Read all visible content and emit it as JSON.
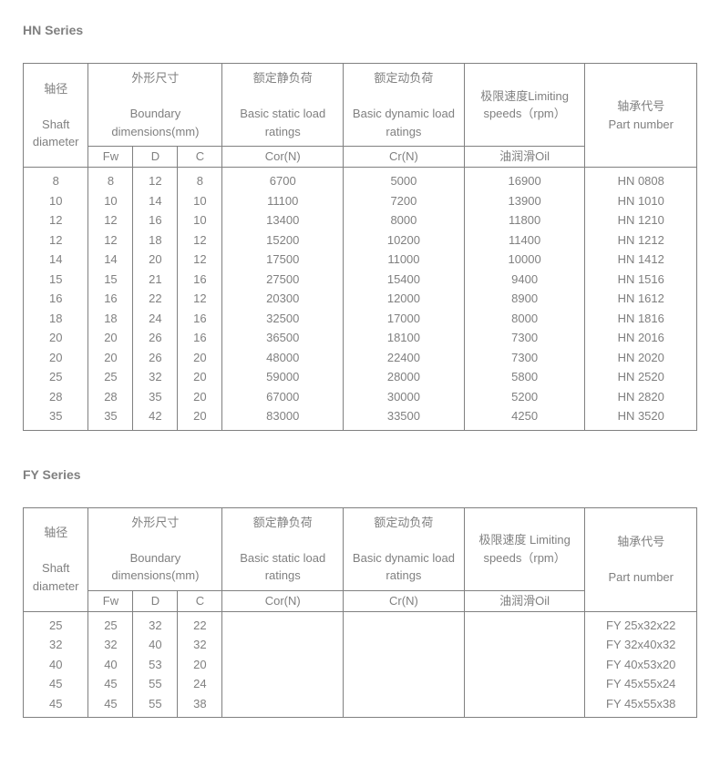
{
  "hn": {
    "title": "HN Series",
    "headers": {
      "shaft_cn": "轴径",
      "shaft_en": "Shaft diameter",
      "dim_cn": "外形尺寸",
      "dim_en": "Boundary dimensions(mm)",
      "fw": "Fw",
      "d": "D",
      "c": "C",
      "static_cn": "额定静负荷",
      "static_en": "Basic static load ratings",
      "static_unit": "Cor(N)",
      "dyn_cn": "额定动负荷",
      "dyn_en": "Basic dynamic load ratings",
      "dyn_unit": "Cr(N)",
      "speed_cn": "极限速度Limiting speeds（rpm）",
      "oil": "油润滑Oil",
      "part_cn": "轴承代号",
      "part_en": "Part number"
    },
    "rows": [
      {
        "shaft": "8",
        "fw": "8",
        "d": "12",
        "c": "8",
        "cor": "6700",
        "cr": "5000",
        "oil": "16900",
        "part": "HN 0808"
      },
      {
        "shaft": "10",
        "fw": "10",
        "d": "14",
        "c": "10",
        "cor": "11100",
        "cr": "7200",
        "oil": "13900",
        "part": "HN 1010"
      },
      {
        "shaft": "12",
        "fw": "12",
        "d": "16",
        "c": "10",
        "cor": "13400",
        "cr": "8000",
        "oil": "11800",
        "part": "HN 1210"
      },
      {
        "shaft": "12",
        "fw": "12",
        "d": "18",
        "c": "12",
        "cor": "15200",
        "cr": "10200",
        "oil": "11400",
        "part": "HN 1212"
      },
      {
        "shaft": "14",
        "fw": "14",
        "d": "20",
        "c": "12",
        "cor": "17500",
        "cr": "11000",
        "oil": "10000",
        "part": "HN 1412"
      },
      {
        "shaft": "15",
        "fw": "15",
        "d": "21",
        "c": "16",
        "cor": "27500",
        "cr": "15400",
        "oil": "9400",
        "part": "HN 1516"
      },
      {
        "shaft": "16",
        "fw": "16",
        "d": "22",
        "c": "12",
        "cor": "20300",
        "cr": "12000",
        "oil": "8900",
        "part": "HN 1612"
      },
      {
        "shaft": "18",
        "fw": "18",
        "d": "24",
        "c": "16",
        "cor": "32500",
        "cr": "17000",
        "oil": "8000",
        "part": "HN 1816"
      },
      {
        "shaft": "20",
        "fw": "20",
        "d": "26",
        "c": "16",
        "cor": "36500",
        "cr": "18100",
        "oil": "7300",
        "part": "HN 2016"
      },
      {
        "shaft": "20",
        "fw": "20",
        "d": "26",
        "c": "20",
        "cor": "48000",
        "cr": "22400",
        "oil": "7300",
        "part": "HN 2020"
      },
      {
        "shaft": "25",
        "fw": "25",
        "d": "32",
        "c": "20",
        "cor": "59000",
        "cr": "28000",
        "oil": "5800",
        "part": "HN 2520"
      },
      {
        "shaft": "28",
        "fw": "28",
        "d": "35",
        "c": "20",
        "cor": "67000",
        "cr": "30000",
        "oil": "5200",
        "part": "HN 2820"
      },
      {
        "shaft": "35",
        "fw": "35",
        "d": "42",
        "c": "20",
        "cor": "83000",
        "cr": "33500",
        "oil": "4250",
        "part": "HN 3520"
      }
    ]
  },
  "fy": {
    "title": "FY Series",
    "headers": {
      "shaft_cn": "轴径",
      "shaft_en": "Shaft diameter",
      "dim_cn": "外形尺寸",
      "dim_en": "Boundary dimensions(mm)",
      "fw": "Fw",
      "d": "D",
      "c": "C",
      "static_cn": "额定静负荷",
      "static_en": "Basic static load ratings",
      "static_unit": "Cor(N)",
      "dyn_cn": "额定动负荷",
      "dyn_en": "Basic dynamic load ratings",
      "dyn_unit": "Cr(N)",
      "speed_cn": "极限速度 Limiting speeds（rpm）",
      "oil": "油润滑Oil",
      "part_cn": "轴承代号",
      "part_en": "Part number"
    },
    "rows": [
      {
        "shaft": "25",
        "fw": "25",
        "d": "32",
        "c": "22",
        "cor": "",
        "cr": "",
        "oil": "",
        "part": "FY 25x32x22"
      },
      {
        "shaft": "32",
        "fw": "32",
        "d": "40",
        "c": "32",
        "cor": "",
        "cr": "",
        "oil": "",
        "part": "FY 32x40x32"
      },
      {
        "shaft": "40",
        "fw": "40",
        "d": "53",
        "c": "20",
        "cor": "",
        "cr": "",
        "oil": "",
        "part": "FY 40x53x20"
      },
      {
        "shaft": "45",
        "fw": "45",
        "d": "55",
        "c": "24",
        "cor": "",
        "cr": "",
        "oil": "",
        "part": "FY 45x55x24"
      },
      {
        "shaft": "45",
        "fw": "45",
        "d": "55",
        "c": "38",
        "cor": "",
        "cr": "",
        "oil": "",
        "part": "FY 45x55x38"
      }
    ]
  }
}
